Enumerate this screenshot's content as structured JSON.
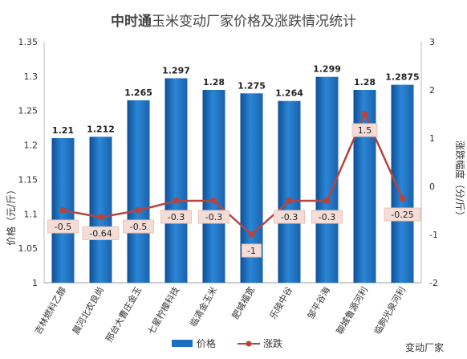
{
  "chart_data": {
    "type": "bar",
    "title_brand": "中时通",
    "title_rest": "玉米变动厂家价格及涨跌情况统计",
    "categories": [
      "吉林燃料乙醇",
      "晨河北农良尚",
      "邢台大曹庄金玉",
      "七星柠檬科技",
      "临清金玉米",
      "肥城福宽",
      "乐陵中谷",
      "邹平谷海",
      "聊城鲁源河利",
      "临朐光泉河利"
    ],
    "series": [
      {
        "name": "价格",
        "type": "bar",
        "axis": "left",
        "color": "#1f6fc0",
        "values": [
          1.21,
          1.212,
          1.265,
          1.297,
          1.28,
          1.275,
          1.264,
          1.299,
          1.28,
          1.2875
        ],
        "labels": [
          "1.21",
          "1.212",
          "1.265",
          "1.297",
          "1.28",
          "1.275",
          "1.264",
          "1.299",
          "1.28",
          "1.2875"
        ]
      },
      {
        "name": "涨跌",
        "type": "line",
        "axis": "right",
        "color": "#b5453e",
        "values": [
          -0.5,
          -0.64,
          -0.5,
          -0.3,
          -0.3,
          -1,
          -0.3,
          -0.3,
          1.5,
          -0.25
        ],
        "labels": [
          "-0.5",
          "-0.64",
          "-0.5",
          "-0.3",
          "-0.3",
          "-1",
          "-0.3",
          "-0.3",
          "1.5",
          "-0.25"
        ]
      }
    ],
    "y_left": {
      "label": "价格（元/斤）",
      "min": 1,
      "max": 1.35,
      "ticks": [
        "1",
        "1.05",
        "1.1",
        "1.15",
        "1.2",
        "1.25",
        "1.3",
        "1.35"
      ]
    },
    "y_right": {
      "label": "涨跌幅度（分/斤）",
      "min": -2,
      "max": 3,
      "ticks": [
        "-2",
        "-1",
        "0",
        "1",
        "2",
        "3"
      ]
    },
    "xlabel": "变动厂家",
    "legend_position": "bottom-center",
    "grid": false
  }
}
